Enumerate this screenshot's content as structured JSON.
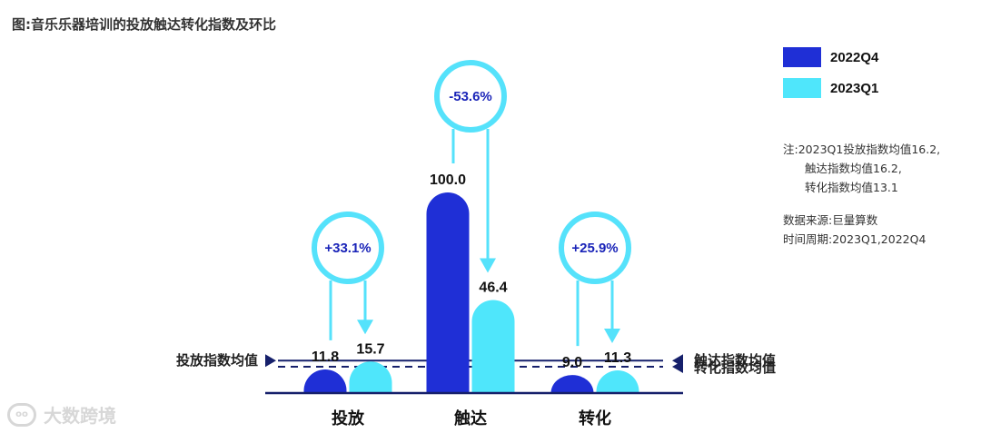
{
  "title": "图:音乐乐器培训的投放触达转化指数及环比",
  "colors": {
    "q4": "#1f2fd6",
    "q1": "#4fe6fb",
    "navy": "#16206b",
    "ring": "#55e2fb",
    "pct_text": "#1a24b8"
  },
  "legend": [
    {
      "label": "2022Q4",
      "color": "#1f2fd6"
    },
    {
      "label": "2023Q1",
      "color": "#4fe6fb"
    }
  ],
  "notes": {
    "line1": "注:2023Q1投放指数均值16.2,",
    "line2": "触达指数均值16.2,",
    "line3": "转化指数均值13.1"
  },
  "source": {
    "line1": "数据来源:巨量算数",
    "line2": "时间周期:2023Q1,2022Q4"
  },
  "watermark": "大数跨境",
  "reference_lines": [
    {
      "label": "投放指数均值",
      "value": 16.2,
      "style": "solid",
      "side": "left"
    },
    {
      "label": "触达指数均值",
      "value": 16.2,
      "style": "solid",
      "side": "right"
    },
    {
      "label": "转化指数均值",
      "value": 13.1,
      "style": "dashed",
      "side": "right"
    }
  ],
  "chart_data": {
    "type": "bar",
    "categories": [
      "投放",
      "触达",
      "转化"
    ],
    "series": [
      {
        "name": "2022Q4",
        "values": [
          11.8,
          100.0,
          9.0
        ],
        "labels": [
          "11.8",
          "100.0",
          "9.0"
        ]
      },
      {
        "name": "2023Q1",
        "values": [
          15.7,
          46.4,
          11.3
        ],
        "labels": [
          "15.7",
          "46.4",
          "11.3"
        ]
      }
    ],
    "changes": [
      "+33.1%",
      "-53.6%",
      "+25.9%"
    ],
    "ylim": [
      0,
      100
    ],
    "grid": false
  }
}
